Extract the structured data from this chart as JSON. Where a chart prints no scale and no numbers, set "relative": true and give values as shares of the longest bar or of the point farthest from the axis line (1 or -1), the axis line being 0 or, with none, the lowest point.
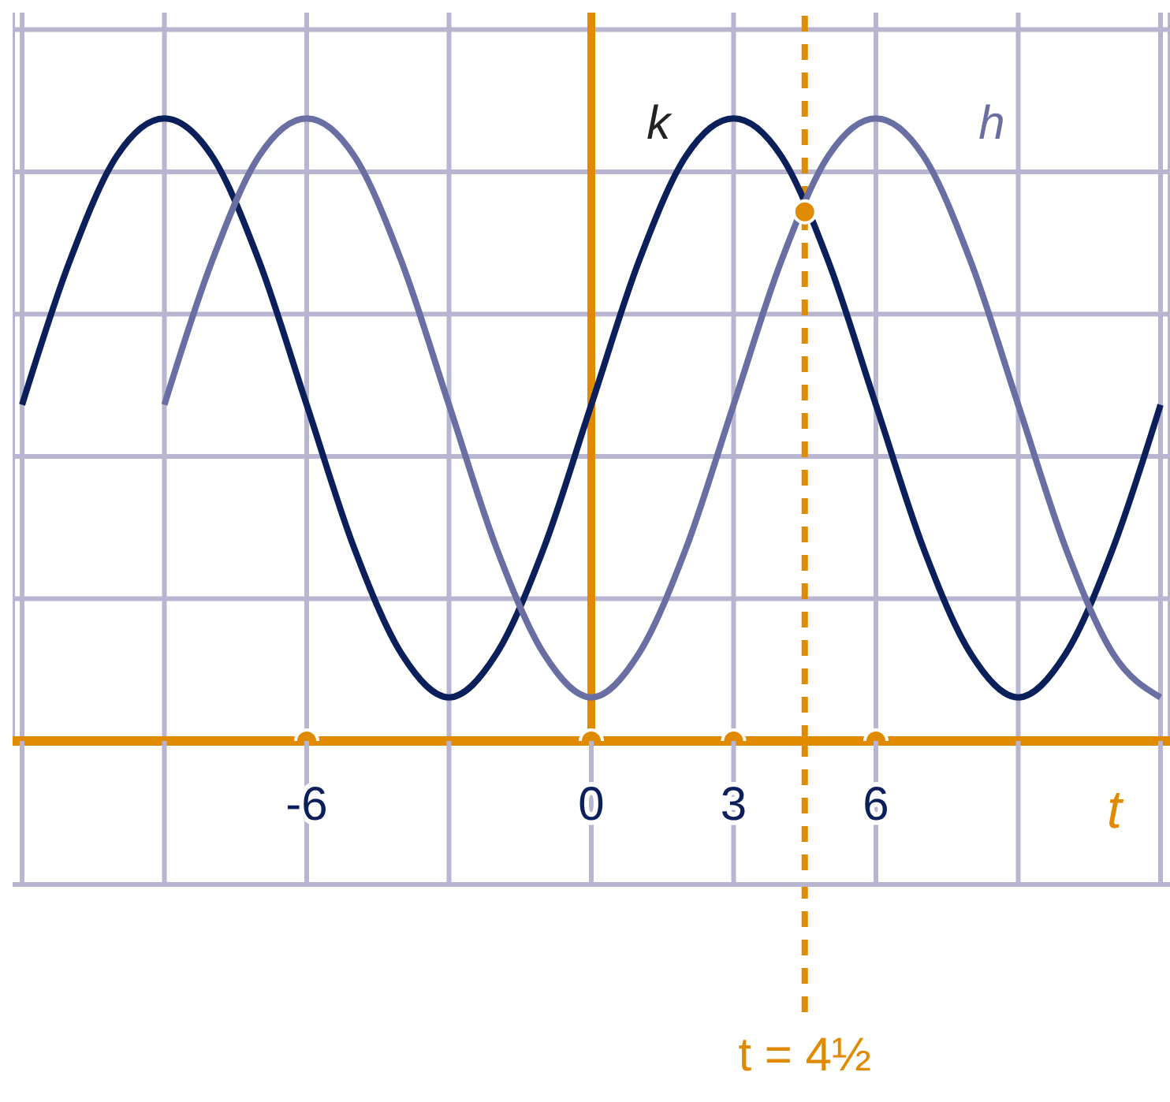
{
  "chart_data": {
    "type": "line",
    "relative": true,
    "xlabel": "t",
    "x": [
      -12,
      -11,
      -10,
      -9,
      -8,
      -7,
      -6,
      -5,
      -4,
      -3,
      -2,
      -1,
      0,
      1,
      2,
      3,
      4,
      5,
      6,
      7,
      8,
      9,
      10,
      11,
      12
    ],
    "xlim": [
      -12.2,
      12.2
    ],
    "xticks": [
      {
        "value": -12,
        "label": null
      },
      {
        "value": -9,
        "label": null
      },
      -6,
      {
        "value": -3,
        "label": null
      },
      0,
      3,
      6,
      {
        "value": 9,
        "label": null
      },
      {
        "value": 12,
        "label": null
      }
    ],
    "grid": true,
    "marker": "none",
    "line_style": "solid",
    "series": [
      {
        "name": "k",
        "color": "#0b1f5a",
        "values": [
          0.54,
          0.77,
          0.94,
          1,
          0.94,
          0.77,
          0.54,
          0.31,
          0.14,
          0.07,
          0.14,
          0.31,
          0.54,
          0.77,
          0.94,
          1,
          0.94,
          0.77,
          0.54,
          0.31,
          0.14,
          0.07,
          0.14,
          0.31,
          0.54
        ]
      },
      {
        "name": "h",
        "color": "#6a6fa3",
        "values": [
          null,
          null,
          null,
          0.54,
          0.77,
          0.94,
          1,
          0.94,
          0.77,
          0.54,
          0.31,
          0.14,
          0.07,
          0.14,
          0.31,
          0.54,
          0.77,
          0.94,
          1,
          0.94,
          0.77,
          0.54,
          0.31,
          0.14,
          0.07
        ]
      },
      {
        "type": "scatter",
        "color": "#e08a00",
        "marker": "circle",
        "x": [
          4.5
        ],
        "values": [
          0.85
        ]
      },
      {
        "type": "scatter",
        "color": "#e08a00",
        "marker": "circle",
        "x": [
          -6,
          0,
          3,
          6
        ],
        "values": [
          0,
          0,
          0,
          0
        ]
      }
    ],
    "ref_lines": [
      {
        "axis": "x",
        "value": 4.5,
        "label": "t = 4½",
        "color": "#e08a00",
        "line_style": "dashed"
      },
      {
        "axis": "x",
        "value": 0,
        "color": "#e08a00",
        "line_style": "solid"
      }
    ]
  }
}
